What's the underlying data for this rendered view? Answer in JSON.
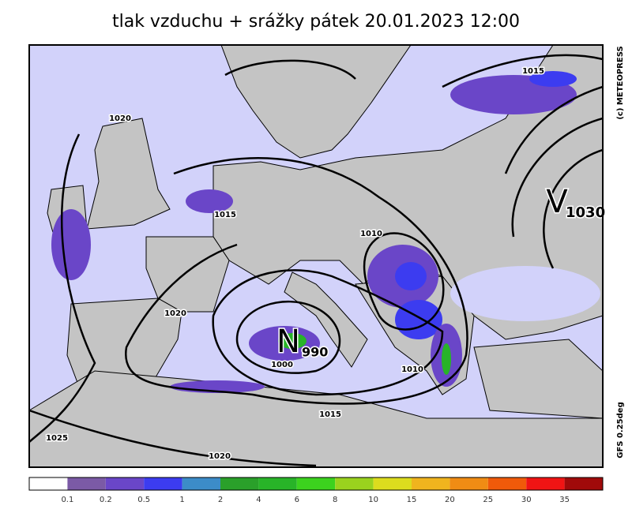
{
  "header": {
    "title": "tlak vzduchu + srážky   pátek 20.01.2023 12:00"
  },
  "credits": {
    "copyright": "(c) METEOPRESS",
    "model": "GFS 0.25deg"
  },
  "centers": [
    {
      "letter": "N",
      "pressure": "990"
    },
    {
      "letter": "V",
      "pressure": "1030"
    }
  ],
  "isobar_labels": [
    "1020",
    "1015",
    "1010",
    "1020",
    "1000",
    "1010",
    "1015",
    "1025",
    "1020",
    "1015"
  ],
  "colorbar": {
    "labels": [
      "0.1",
      "0.2",
      "0.5",
      "1",
      "2",
      "4",
      "6",
      "8",
      "10",
      "15",
      "20",
      "25",
      "30",
      "35"
    ],
    "colors": [
      "#ffffff",
      "#7b5aa6",
      "#6a46c8",
      "#3c3cf0",
      "#3c8cc8",
      "#2aa02a",
      "#28b428",
      "#3cd21e",
      "#9ad21e",
      "#dcdc1e",
      "#f0b41e",
      "#f08c14",
      "#f05a0a",
      "#f01414",
      "#a00a0a"
    ]
  }
}
